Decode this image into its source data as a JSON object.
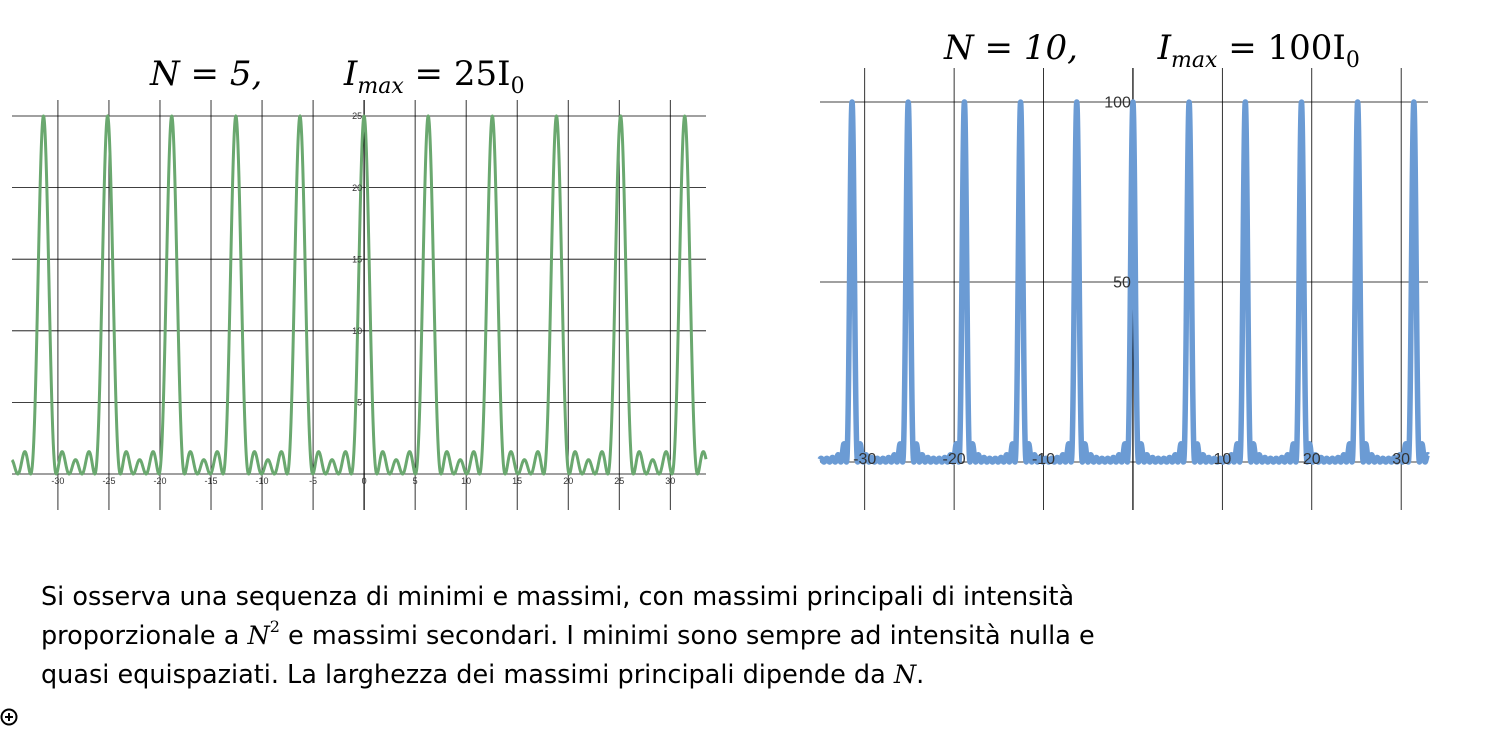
{
  "chart_data": [
    {
      "type": "line",
      "title_parts": {
        "n_eq": "N = 5,",
        "imax": "I",
        "imax_sub": "max",
        "eq_val": " = 25I",
        "val_sub": "0"
      },
      "N": 5,
      "color": "#6aa86f",
      "xlim": [
        -34.5,
        33.5
      ],
      "ylim": [
        0,
        25
      ],
      "x_ticks": [
        -30,
        -25,
        -20,
        -15,
        -10,
        -5,
        0,
        5,
        10,
        15,
        20,
        25,
        30
      ],
      "x_tick_labels": [
        "-30",
        "-25",
        "-20",
        "-15",
        "-10",
        "-5",
        "0",
        "5",
        "10",
        "15",
        "20",
        "25",
        "30"
      ],
      "y_ticks": [
        5,
        10,
        15,
        20,
        25
      ],
      "y_tick_labels": [
        "5",
        "10",
        "15",
        "20",
        "25"
      ],
      "peak_spacing": 6.283,
      "peak_value": 25
    },
    {
      "type": "line",
      "title_parts": {
        "n_eq": "N = 10,",
        "imax": "I",
        "imax_sub": "max",
        "eq_val": " = 100I",
        "val_sub": "0"
      },
      "N": 10,
      "color": "#6b9bd4",
      "xlim": [
        -35,
        33
      ],
      "ylim": [
        0,
        100
      ],
      "x_ticks": [
        -30,
        -20,
        -10,
        0,
        10,
        20,
        30
      ],
      "x_tick_labels": [
        "-30",
        "-20",
        "-10",
        "",
        "10",
        "20",
        "30"
      ],
      "y_ticks": [
        50,
        100
      ],
      "y_tick_labels": [
        "50",
        "100"
      ],
      "peak_spacing": 6.283,
      "peak_value": 100
    }
  ],
  "caption": {
    "line1": "Si osserva una sequenza di minimi e massimi, con massimi principali di intensità",
    "line2_a": "proporzionale a ",
    "line2_math": "N",
    "line2_sup": "2",
    "line2_b": " e massimi secondari. I minimi sono sempre ad intensità nulla e",
    "line3_a": "quasi equispaziati. La larghezza dei massimi principali dipende da ",
    "line3_math": "N",
    "line3_b": "."
  },
  "icons": {
    "add": "plus-circle-icon"
  }
}
